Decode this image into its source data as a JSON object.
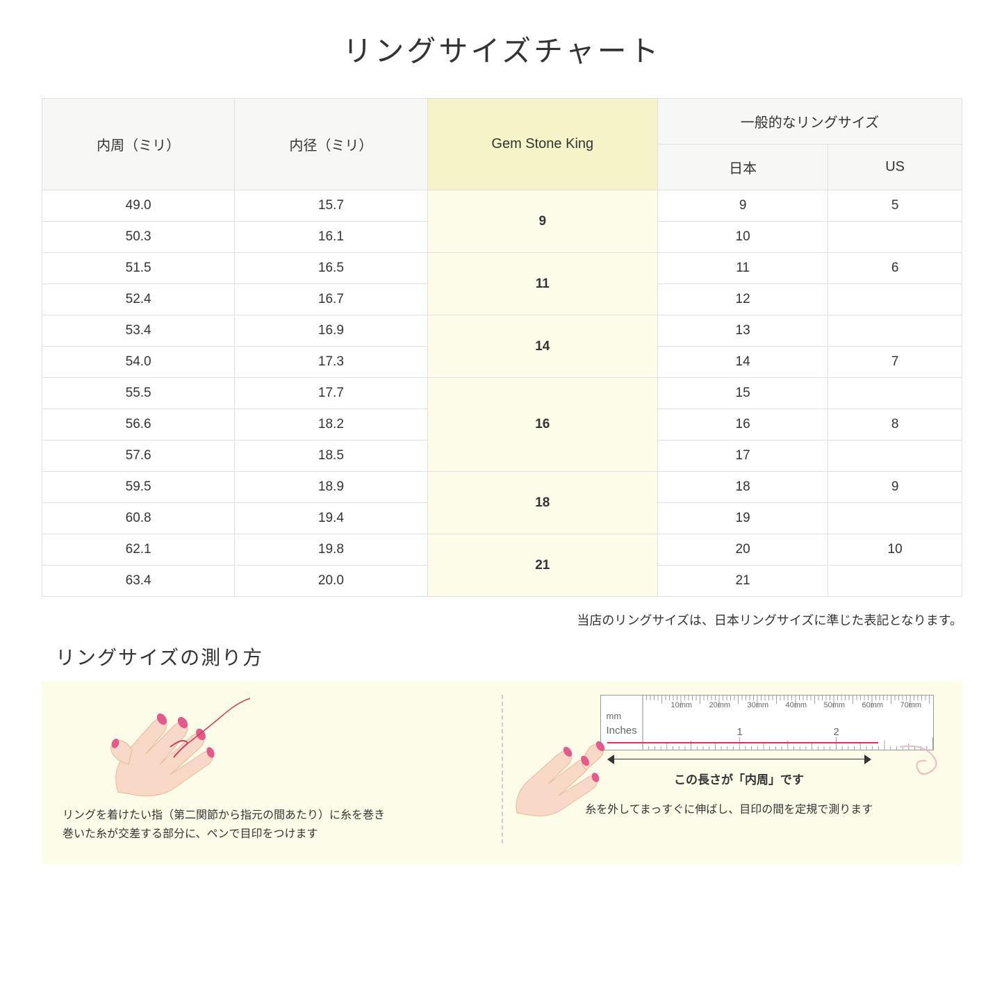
{
  "title": "リングサイズチャート",
  "headers": {
    "col1": "内周（ミリ）",
    "col2": "内径（ミリ）",
    "col3": "Gem Stone King",
    "col4_group": "一般的なリングサイズ",
    "col4a": "日本",
    "col4b": "US"
  },
  "rows": [
    {
      "c": "49.0",
      "d": "15.7",
      "g": "9",
      "gspan": 2,
      "jp": "9",
      "us": "5"
    },
    {
      "c": "50.3",
      "d": "16.1",
      "jp": "10",
      "us": ""
    },
    {
      "c": "51.5",
      "d": "16.5",
      "g": "11",
      "gspan": 2,
      "jp": "11",
      "us": "6"
    },
    {
      "c": "52.4",
      "d": "16.7",
      "jp": "12",
      "us": ""
    },
    {
      "c": "53.4",
      "d": "16.9",
      "g": "14",
      "gspan": 2,
      "jp": "13",
      "us": ""
    },
    {
      "c": "54.0",
      "d": "17.3",
      "jp": "14",
      "us": "7"
    },
    {
      "c": "55.5",
      "d": "17.7",
      "g": "16",
      "gspan": 3,
      "jp": "15",
      "us": ""
    },
    {
      "c": "56.6",
      "d": "18.2",
      "jp": "16",
      "us": "8"
    },
    {
      "c": "57.6",
      "d": "18.5",
      "jp": "17",
      "us": ""
    },
    {
      "c": "59.5",
      "d": "18.9",
      "g": "18",
      "gspan": 2,
      "jp": "18",
      "us": "9"
    },
    {
      "c": "60.8",
      "d": "19.4",
      "jp": "19",
      "us": ""
    },
    {
      "c": "62.1",
      "d": "19.8",
      "g": "21",
      "gspan": 2,
      "jp": "20",
      "us": "10"
    },
    {
      "c": "63.4",
      "d": "20.0",
      "jp": "21",
      "us": ""
    }
  ],
  "note": "当店のリングサイズは、日本リングサイズに準じた表記となります。",
  "howto": {
    "title": "リングサイズの測り方",
    "left_line1": "リングを着けたい指（第二関節から指元の間あたり）に糸を巻き",
    "left_line2": "巻いた糸が交差する部分に、ペンで目印をつけます",
    "right_measure": "この長さが「内周」です",
    "right_text": "糸を外してまっすぐに伸ばし、目印の間を定規で測ります",
    "ruler_mm": "mm",
    "ruler_in": "Inches",
    "mm_marks": [
      "10mm",
      "20mm",
      "30mm",
      "40mm",
      "50mm",
      "60mm",
      "70mm"
    ],
    "in_marks": [
      "1",
      "2"
    ]
  },
  "colors": {
    "header_gray": "#f7f7f5",
    "header_yellow": "#f5f3c8",
    "cell_yellow": "#fdfce8",
    "border": "#e0e0e0",
    "skin": "#f8d9c8",
    "nail": "#e8588a",
    "thread": "#d13b5a"
  }
}
